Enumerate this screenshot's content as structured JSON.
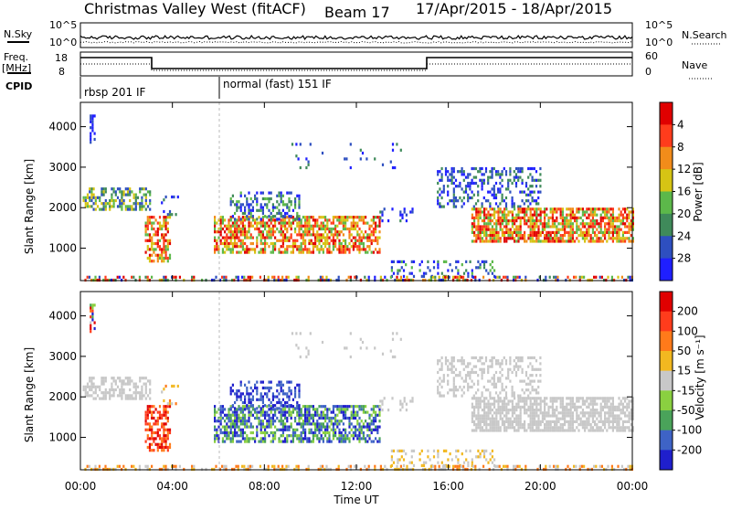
{
  "header": {
    "station": "Christmas Valley West (fitACF)",
    "beam": "Beam 17",
    "date_range": "17/Apr/2015 - 18/Apr/2015"
  },
  "panels": {
    "nsky": {
      "label": "N.Sky",
      "left_ticks": [
        "10^5",
        "10^0"
      ],
      "right_ticks": [
        "10^5",
        "10^0"
      ],
      "right_label": "N.Search"
    },
    "freq": {
      "label_line1": "Freq.",
      "label_line2": "[MHz]",
      "left_ticks": [
        "18",
        "8"
      ],
      "right_ticks": [
        "60",
        "0"
      ],
      "right_label": "Nave"
    },
    "cpid": {
      "label": "CPID",
      "segments": [
        "rbsp 201 IF",
        "normal (fast) 151 IF"
      ]
    }
  },
  "chart_data": [
    {
      "type": "heatmap",
      "parameter": "Power",
      "ylabel": "Slant Range [km]",
      "xlabel": "",
      "ylim": [
        200,
        4600
      ],
      "yticks": [
        1000,
        2000,
        3000,
        4000
      ],
      "colorbar_label": "Power [dB]",
      "colorbar_ticks": [
        "4",
        "8",
        "12",
        "16",
        "20",
        "24",
        "28"
      ],
      "colorbar_colors": [
        "#1f1fff",
        "#2e4fc0",
        "#3f8a5a",
        "#5cb84a",
        "#d6c414",
        "#f28c1a",
        "#ff3c1c",
        "#e00000"
      ]
    },
    {
      "type": "heatmap",
      "parameter": "Velocity",
      "ylabel": "Slant Range [km]",
      "xlabel": "Time UT",
      "ylim": [
        200,
        4600
      ],
      "yticks": [
        1000,
        2000,
        3000,
        4000
      ],
      "colorbar_label": "Velocity [m s⁻¹]",
      "colorbar_ticks": [
        "200",
        "100",
        "50",
        "15",
        "-15",
        "-50",
        "-100",
        "-200"
      ],
      "colorbar_colors": [
        "#1f1fcc",
        "#3e63c6",
        "#4aa35a",
        "#8ad040",
        "#c8c8c8",
        "#f2b820",
        "#ff7a1a",
        "#ff3c1c",
        "#e00000"
      ]
    }
  ],
  "time_axis": {
    "xlabel": "Time UT",
    "ticks": [
      "00:00",
      "04:00",
      "08:00",
      "12:00",
      "16:00",
      "20:00",
      "00:00"
    ]
  }
}
